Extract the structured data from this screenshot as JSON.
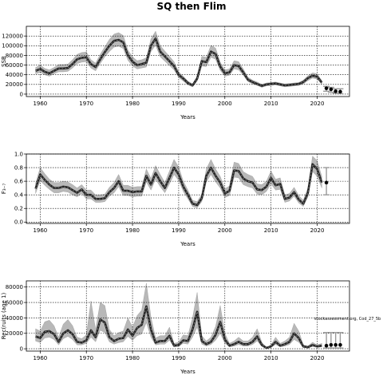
{
  "title": "SQ then Flim",
  "watermark": "stockassessment.org, Cod_27_5b",
  "colors": {
    "line": "#000000",
    "band": "#b8b8b8",
    "grid": "#000000"
  },
  "chart_data": [
    {
      "type": "line",
      "ylabel": "SSB",
      "xlabel": "Years",
      "xlim": [
        1957,
        2027
      ],
      "ylim": [
        -5000,
        140000
      ],
      "xticks": [
        1960,
        1970,
        1980,
        1990,
        2000,
        2010,
        2020
      ],
      "yticks": [
        0,
        20000,
        40000,
        60000,
        80000,
        100000,
        120000
      ],
      "grid": true,
      "years": [
        1959,
        1960,
        1961,
        1962,
        1963,
        1964,
        1965,
        1966,
        1967,
        1968,
        1969,
        1970,
        1971,
        1972,
        1973,
        1974,
        1975,
        1976,
        1977,
        1978,
        1979,
        1980,
        1981,
        1982,
        1983,
        1984,
        1985,
        1986,
        1987,
        1988,
        1989,
        1990,
        1991,
        1992,
        1993,
        1994,
        1995,
        1996,
        1997,
        1998,
        1999,
        2000,
        2001,
        2002,
        2003,
        2004,
        2005,
        2006,
        2007,
        2008,
        2009,
        2010,
        2011,
        2012,
        2013,
        2014,
        2015,
        2016,
        2017,
        2018,
        2019,
        2020,
        2021
      ],
      "estimate": [
        48000,
        52000,
        46000,
        43000,
        48000,
        53000,
        53000,
        54000,
        62000,
        72000,
        75000,
        76000,
        62000,
        56000,
        72000,
        87000,
        100000,
        110000,
        112000,
        107000,
        80000,
        67000,
        60000,
        62000,
        65000,
        100000,
        115000,
        88000,
        78000,
        68000,
        58000,
        40000,
        32000,
        23000,
        18000,
        32000,
        68000,
        66000,
        88000,
        83000,
        57000,
        43000,
        45000,
        60000,
        58000,
        45000,
        30000,
        25000,
        21000,
        17000,
        20000,
        21000,
        22000,
        20000,
        18000,
        19000,
        20000,
        21000,
        25000,
        33000,
        38000,
        36000,
        24000
      ],
      "lower": [
        42000,
        45000,
        40000,
        37000,
        42000,
        46000,
        46000,
        47000,
        54000,
        63000,
        66000,
        67000,
        54000,
        48000,
        63000,
        77000,
        88000,
        97000,
        99000,
        94000,
        70000,
        58000,
        52000,
        54000,
        56000,
        88000,
        101000,
        77000,
        68000,
        59000,
        50000,
        34000,
        27000,
        19000,
        15000,
        27000,
        58000,
        57000,
        76000,
        72000,
        49000,
        37000,
        39000,
        52000,
        50000,
        39000,
        26000,
        21000,
        18000,
        14000,
        17000,
        18000,
        19000,
        17000,
        15000,
        16000,
        17000,
        18000,
        21000,
        28000,
        33000,
        31000,
        20000
      ],
      "upper": [
        55000,
        60000,
        53000,
        50000,
        55000,
        61000,
        61000,
        62000,
        71000,
        82000,
        86000,
        87000,
        71000,
        64000,
        82000,
        98000,
        113000,
        124000,
        127000,
        121000,
        91000,
        77000,
        69000,
        71000,
        75000,
        114000,
        130000,
        100000,
        89000,
        78000,
        67000,
        46000,
        37000,
        27000,
        21000,
        37000,
        78000,
        76000,
        101000,
        95000,
        66000,
        50000,
        52000,
        69000,
        67000,
        52000,
        35000,
        29000,
        25000,
        20000,
        23000,
        24000,
        25000,
        23000,
        21000,
        22000,
        23000,
        24000,
        29000,
        38000,
        44000,
        42000,
        28000
      ],
      "forecast_years": [
        2022,
        2023,
        2024,
        2025
      ],
      "forecast_median": [
        12000,
        10000,
        6000,
        5000
      ],
      "forecast_lower": [
        6000,
        4000,
        2000,
        1000
      ],
      "forecast_upper": [
        16000,
        14000,
        11000,
        11000
      ]
    },
    {
      "type": "line",
      "ylabel": "F₃₋₇",
      "xlabel": "Years",
      "xlim": [
        1957,
        2027
      ],
      "ylim": [
        -0.02,
        1.0
      ],
      "xticks": [
        1960,
        1970,
        1980,
        1990,
        2000,
        2010,
        2020
      ],
      "yticks": [
        0.0,
        0.2,
        0.4,
        0.6,
        0.8,
        1.0
      ],
      "ytick_labels": [
        "0.0",
        "0.2",
        "0.4",
        "0.6",
        "0.8",
        "1.0"
      ],
      "grid": true,
      "years": [
        1959,
        1960,
        1961,
        1962,
        1963,
        1964,
        1965,
        1966,
        1967,
        1968,
        1969,
        1970,
        1971,
        1972,
        1973,
        1974,
        1975,
        1976,
        1977,
        1978,
        1979,
        1980,
        1981,
        1982,
        1983,
        1984,
        1985,
        1986,
        1987,
        1988,
        1989,
        1990,
        1991,
        1992,
        1993,
        1994,
        1995,
        1996,
        1997,
        1998,
        1999,
        2000,
        2001,
        2002,
        2003,
        2004,
        2005,
        2006,
        2007,
        2008,
        2009,
        2010,
        2011,
        2012,
        2013,
        2014,
        2015,
        2016,
        2017,
        2018,
        2019,
        2020,
        2021
      ],
      "estimate": [
        0.49,
        0.7,
        0.62,
        0.55,
        0.5,
        0.5,
        0.52,
        0.51,
        0.47,
        0.43,
        0.48,
        0.4,
        0.4,
        0.34,
        0.34,
        0.35,
        0.44,
        0.5,
        0.6,
        0.46,
        0.46,
        0.44,
        0.45,
        0.45,
        0.68,
        0.55,
        0.72,
        0.6,
        0.5,
        0.65,
        0.8,
        0.7,
        0.52,
        0.4,
        0.27,
        0.25,
        0.35,
        0.68,
        0.8,
        0.68,
        0.58,
        0.42,
        0.46,
        0.76,
        0.75,
        0.64,
        0.6,
        0.58,
        0.48,
        0.47,
        0.52,
        0.65,
        0.54,
        0.56,
        0.34,
        0.36,
        0.44,
        0.33,
        0.27,
        0.43,
        0.85,
        0.78,
        0.58
      ],
      "lower": [
        0.42,
        0.61,
        0.54,
        0.48,
        0.43,
        0.43,
        0.45,
        0.44,
        0.4,
        0.37,
        0.42,
        0.34,
        0.34,
        0.29,
        0.29,
        0.3,
        0.38,
        0.43,
        0.52,
        0.39,
        0.39,
        0.37,
        0.38,
        0.38,
        0.59,
        0.47,
        0.63,
        0.52,
        0.43,
        0.56,
        0.7,
        0.61,
        0.45,
        0.34,
        0.23,
        0.21,
        0.3,
        0.59,
        0.7,
        0.59,
        0.5,
        0.36,
        0.39,
        0.66,
        0.65,
        0.55,
        0.52,
        0.5,
        0.41,
        0.4,
        0.45,
        0.56,
        0.47,
        0.48,
        0.29,
        0.31,
        0.38,
        0.28,
        0.23,
        0.37,
        0.74,
        0.67,
        0.5
      ],
      "upper": [
        0.57,
        0.8,
        0.71,
        0.63,
        0.58,
        0.58,
        0.6,
        0.59,
        0.55,
        0.5,
        0.55,
        0.47,
        0.47,
        0.4,
        0.4,
        0.41,
        0.51,
        0.58,
        0.7,
        0.54,
        0.54,
        0.51,
        0.52,
        0.52,
        0.78,
        0.64,
        0.83,
        0.7,
        0.58,
        0.75,
        0.92,
        0.81,
        0.6,
        0.47,
        0.32,
        0.3,
        0.41,
        0.78,
        0.92,
        0.78,
        0.67,
        0.49,
        0.53,
        0.88,
        0.86,
        0.74,
        0.7,
        0.67,
        0.56,
        0.55,
        0.6,
        0.75,
        0.63,
        0.65,
        0.4,
        0.42,
        0.51,
        0.39,
        0.32,
        0.5,
        0.97,
        0.9,
        0.67
      ],
      "forecast_years": [
        2022
      ],
      "forecast_median": [
        0.58
      ],
      "forecast_lower": [
        0.4
      ],
      "forecast_upper": [
        0.8
      ]
    },
    {
      "type": "line",
      "ylabel": "Rec(ruits (age 1)",
      "xlabel": "Years",
      "xlim": [
        1957,
        2027
      ],
      "ylim": [
        -3000,
        88000
      ],
      "xticks": [
        1960,
        1970,
        1980,
        1990,
        2000,
        2010,
        2020
      ],
      "yticks": [
        0,
        20000,
        40000,
        60000,
        80000
      ],
      "grid": true,
      "years": [
        1959,
        1960,
        1961,
        1962,
        1963,
        1964,
        1965,
        1966,
        1967,
        1968,
        1969,
        1970,
        1971,
        1972,
        1973,
        1974,
        1975,
        1976,
        1977,
        1978,
        1979,
        1980,
        1981,
        1982,
        1983,
        1984,
        1985,
        1986,
        1987,
        1988,
        1989,
        1990,
        1991,
        1992,
        1993,
        1994,
        1995,
        1996,
        1997,
        1998,
        1999,
        2000,
        2001,
        2002,
        2003,
        2004,
        2005,
        2006,
        2007,
        2008,
        2009,
        2010,
        2011,
        2012,
        2013,
        2014,
        2015,
        2016,
        2017,
        2018,
        2019,
        2020,
        2021
      ],
      "estimate": [
        16000,
        14000,
        22000,
        23000,
        19000,
        9000,
        20000,
        24000,
        19000,
        9000,
        8000,
        11000,
        24000,
        15000,
        38000,
        34000,
        15000,
        10000,
        13000,
        14000,
        25000,
        17000,
        27000,
        31000,
        55000,
        25000,
        8000,
        10000,
        10000,
        17000,
        4000,
        5000,
        11000,
        10000,
        25000,
        48000,
        10000,
        6000,
        9000,
        18000,
        35000,
        12000,
        4000,
        6000,
        9000,
        6000,
        6000,
        9000,
        16000,
        5000,
        1000,
        3000,
        9000,
        4000,
        6000,
        9000,
        20000,
        14000,
        3000,
        2000,
        5000,
        3000,
        4000
      ],
      "lower": [
        10000,
        8000,
        14000,
        15000,
        12000,
        5000,
        13000,
        16000,
        12000,
        5000,
        5000,
        7000,
        15000,
        9000,
        24000,
        21000,
        9000,
        6000,
        8000,
        9000,
        16000,
        11000,
        17000,
        19000,
        34000,
        15000,
        5000,
        6000,
        6000,
        11000,
        2500,
        3000,
        7000,
        6000,
        15000,
        28000,
        6000,
        3500,
        5500,
        11000,
        20000,
        7000,
        2500,
        3500,
        5500,
        3500,
        3500,
        5500,
        10000,
        3000,
        600,
        1800,
        5500,
        2500,
        3500,
        5500,
        12000,
        8500,
        1800,
        1200,
        3000,
        1800,
        2500
      ],
      "upper": [
        26000,
        23000,
        35000,
        37000,
        30000,
        15000,
        32000,
        38000,
        30000,
        15000,
        13000,
        18000,
        62000,
        25000,
        60000,
        56000,
        25000,
        17000,
        21000,
        23000,
        40000,
        28000,
        43000,
        50000,
        85000,
        41000,
        14000,
        17000,
        17000,
        28000,
        7000,
        8500,
        18000,
        17000,
        40000,
        73000,
        17000,
        10000,
        15000,
        29000,
        56000,
        20000,
        7000,
        10000,
        15000,
        10000,
        10000,
        15000,
        26000,
        8500,
        1800,
        5000,
        15000,
        7000,
        10000,
        15000,
        33000,
        23000,
        5000,
        3500,
        8500,
        5000,
        7000
      ],
      "forecast_years": [
        2022,
        2023,
        2024,
        2025
      ],
      "forecast_median": [
        4000,
        5000,
        5000,
        5000
      ],
      "forecast_lower": [
        1000,
        1000,
        1000,
        1000
      ],
      "forecast_upper": [
        21000,
        21000,
        21000,
        21000
      ]
    }
  ]
}
